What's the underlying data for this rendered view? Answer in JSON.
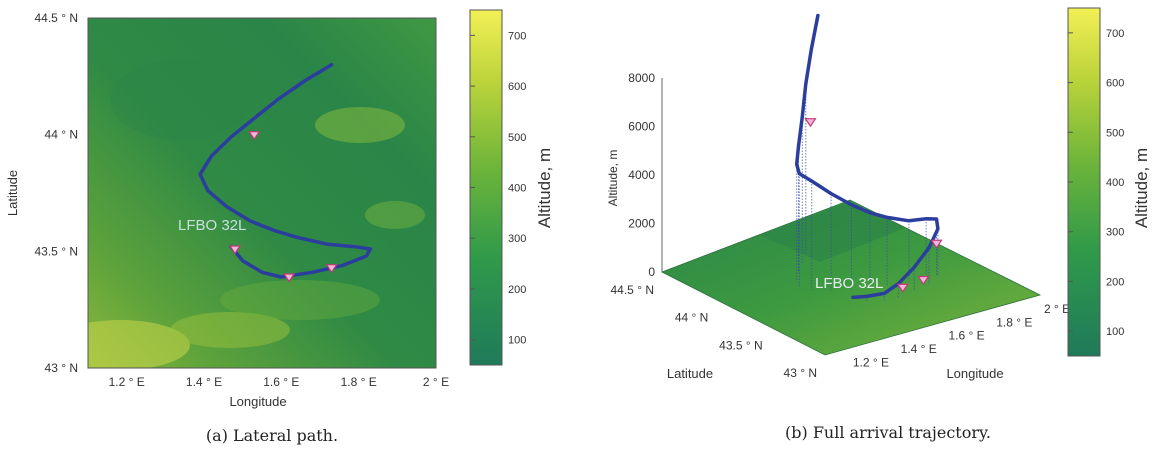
{
  "chart_data": [
    {
      "type": "heatmap",
      "caption": "(a) Lateral path.",
      "xlabel": "Longitude",
      "ylabel": "Latitude",
      "xlim": [
        1.1,
        2.0
      ],
      "ylim": [
        43.0,
        44.5
      ],
      "xticks": [
        1.2,
        1.4,
        1.6,
        1.8,
        2.0
      ],
      "xtick_labels": [
        "1.2 ° E",
        "1.4 ° E",
        "1.6 ° E",
        "1.8 ° E",
        "2 ° E"
      ],
      "yticks": [
        43.0,
        43.5,
        44.0,
        44.5
      ],
      "ytick_labels": [
        "43 ° N",
        "43.5 ° N",
        "44 ° N",
        "44.5 ° N"
      ],
      "annotation": "LFBO 32L",
      "trajectory": {
        "lon": [
          1.73,
          1.66,
          1.59,
          1.53,
          1.47,
          1.42,
          1.39,
          1.41,
          1.46,
          1.52,
          1.58,
          1.64,
          1.72,
          1.79,
          1.83,
          1.82,
          1.76,
          1.68,
          1.6,
          1.55,
          1.5,
          1.47
        ],
        "lat": [
          44.3,
          44.23,
          44.15,
          44.07,
          43.99,
          43.91,
          43.83,
          43.76,
          43.69,
          43.63,
          43.59,
          43.56,
          43.53,
          43.52,
          43.51,
          43.48,
          43.44,
          43.41,
          43.39,
          43.41,
          43.46,
          43.52
        ]
      },
      "markers": {
        "lon": [
          1.53,
          1.48,
          1.62,
          1.73
        ],
        "lat": [
          44.0,
          43.51,
          43.39,
          43.43
        ]
      },
      "colorbar": {
        "label": "Altitude, m",
        "range": [
          50,
          750
        ],
        "ticks": [
          100,
          200,
          300,
          400,
          500,
          600,
          700
        ],
        "tick_labels": [
          "100",
          "200",
          "300",
          "400",
          "500",
          "600",
          "700"
        ]
      }
    },
    {
      "type": "line",
      "caption": "(b) Full arrival trajectory.",
      "xlabel": "Longitude",
      "ylabel": "Latitude",
      "zlabel": "Altitude, m",
      "xlim": [
        1.1,
        2.0
      ],
      "ylim": [
        43.0,
        44.5
      ],
      "zlim": [
        0,
        8000
      ],
      "xticks": [
        1.2,
        1.4,
        1.6,
        1.8,
        2.0
      ],
      "xtick_labels": [
        "1.2 ° E",
        "1.4 ° E",
        "1.6 ° E",
        "1.8 ° E",
        "2 ° E"
      ],
      "yticks": [
        43.0,
        43.5,
        44.0,
        44.5
      ],
      "ytick_labels": [
        "43 ° N",
        "43.5 ° N",
        "44 ° N",
        "44.5 ° N"
      ],
      "zticks": [
        0,
        2000,
        4000,
        6000,
        8000
      ],
      "ztick_labels": [
        "0",
        "2000",
        "4000",
        "6000",
        "8000"
      ],
      "annotation": "LFBO 32L",
      "trajectory": {
        "lon": [
          1.73,
          1.66,
          1.59,
          1.53,
          1.47,
          1.42,
          1.39,
          1.41,
          1.46,
          1.52,
          1.58,
          1.64,
          1.72,
          1.79,
          1.83,
          1.82,
          1.76,
          1.68,
          1.6,
          1.55,
          1.5,
          1.47
        ],
        "lat": [
          44.3,
          44.23,
          44.15,
          44.07,
          43.99,
          43.91,
          43.83,
          43.76,
          43.69,
          43.63,
          43.59,
          43.56,
          43.53,
          43.52,
          43.51,
          43.48,
          43.44,
          43.41,
          43.39,
          43.41,
          43.46,
          43.52
        ],
        "alt": [
          9000,
          8000,
          7000,
          6000,
          5200,
          4800,
          4700,
          4500,
          4000,
          3500,
          3100,
          2800,
          2500,
          2400,
          2300,
          2000,
          1500,
          1000,
          600,
          300,
          200,
          100
        ]
      },
      "markers": {
        "lon": [
          1.53,
          1.83,
          1.62,
          1.73
        ],
        "lat": [
          44.0,
          43.51,
          43.39,
          43.43
        ],
        "alt": [
          6000,
          1300,
          400,
          300
        ]
      },
      "colorbar": {
        "label": "Altitude, m",
        "range": [
          50,
          750
        ],
        "ticks": [
          100,
          200,
          300,
          400,
          500,
          600,
          700
        ],
        "tick_labels": [
          "100",
          "200",
          "300",
          "400",
          "500",
          "600",
          "700"
        ]
      }
    }
  ]
}
